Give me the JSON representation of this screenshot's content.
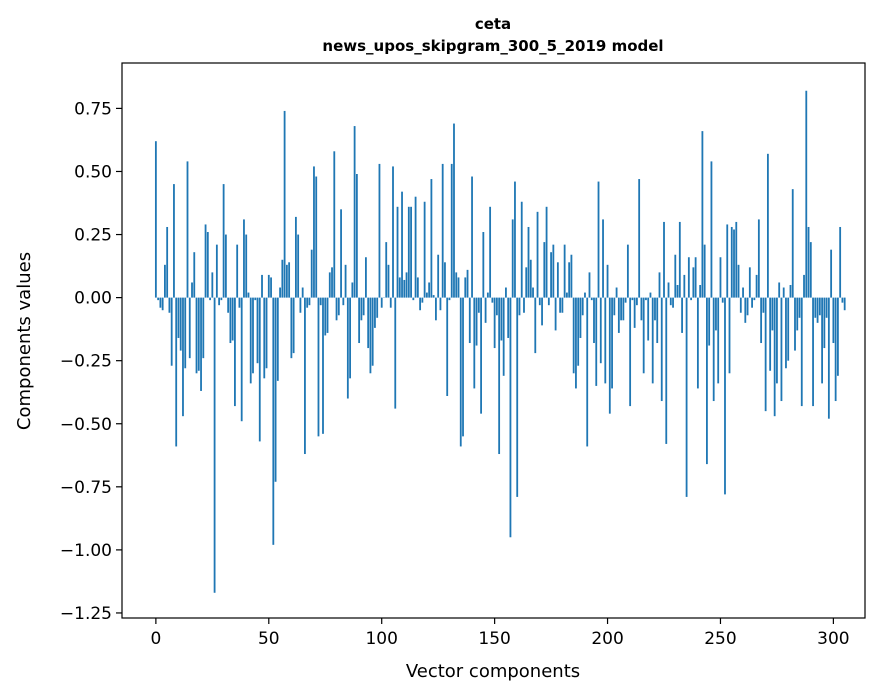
{
  "chart_data": {
    "type": "bar",
    "title_line1": "ceta",
    "title_line2": "news_upos_skipgram_300_5_2019 model",
    "xlabel": "Vector components",
    "ylabel": "Components values",
    "xlim": [
      -15,
      314
    ],
    "ylim": [
      -1.27,
      0.93
    ],
    "xticks": [
      0,
      50,
      100,
      150,
      200,
      250,
      300
    ],
    "yticks": [
      -1.25,
      -1.0,
      -0.75,
      -0.5,
      -0.25,
      0.0,
      0.25,
      0.5,
      0.75
    ],
    "ytick_labels": [
      "−1.25",
      "−1.00",
      "−0.75",
      "−0.50",
      "−0.25",
      "0.00",
      "0.25",
      "0.50",
      "0.75"
    ],
    "xtick_labels": [
      "0",
      "50",
      "100",
      "150",
      "200",
      "250",
      "300"
    ],
    "bar_color": "#1f77b4",
    "values": [
      0.62,
      -0.01,
      -0.04,
      -0.05,
      0.13,
      0.28,
      -0.06,
      -0.27,
      0.45,
      -0.59,
      -0.16,
      -0.21,
      -0.47,
      -0.28,
      0.54,
      -0.24,
      0.06,
      0.18,
      -0.3,
      -0.29,
      -0.37,
      -0.24,
      0.29,
      0.26,
      -0.01,
      0.1,
      -1.17,
      0.21,
      -0.03,
      -0.01,
      0.45,
      0.25,
      -0.06,
      -0.18,
      -0.17,
      -0.43,
      0.21,
      -0.04,
      -0.49,
      0.31,
      0.25,
      0.02,
      -0.34,
      -0.3,
      -0.01,
      -0.26,
      -0.57,
      0.09,
      -0.32,
      -0.28,
      0.09,
      0.08,
      -0.98,
      -0.73,
      -0.33,
      0.04,
      0.15,
      0.74,
      0.13,
      0.14,
      -0.24,
      -0.22,
      0.32,
      0.25,
      -0.06,
      0.04,
      -0.62,
      -0.04,
      -0.03,
      0.19,
      0.52,
      0.48,
      -0.55,
      -0.03,
      -0.54,
      -0.15,
      -0.14,
      0.1,
      0.12,
      0.58,
      -0.09,
      -0.07,
      0.35,
      -0.03,
      0.13,
      -0.4,
      -0.32,
      0.06,
      0.68,
      0.49,
      -0.18,
      -0.09,
      -0.07,
      0.16,
      -0.2,
      -0.3,
      -0.27,
      -0.12,
      -0.08,
      0.53,
      -0.04,
      0.0,
      0.22,
      0.13,
      -0.04,
      0.52,
      -0.44,
      0.36,
      0.08,
      0.42,
      0.07,
      0.1,
      0.36,
      0.36,
      -0.01,
      0.4,
      0.08,
      -0.05,
      -0.02,
      0.38,
      0.02,
      0.06,
      0.47,
      0.01,
      -0.09,
      0.17,
      -0.05,
      0.53,
      0.14,
      -0.39,
      -0.01,
      0.53,
      0.69,
      0.1,
      0.08,
      -0.59,
      -0.55,
      0.08,
      0.11,
      -0.18,
      0.48,
      -0.36,
      -0.19,
      -0.06,
      -0.46,
      0.26,
      -0.1,
      0.02,
      0.36,
      -0.02,
      -0.2,
      -0.07,
      -0.62,
      -0.17,
      -0.31,
      0.04,
      -0.16,
      -0.95,
      0.31,
      0.46,
      -0.79,
      -0.07,
      0.38,
      -0.06,
      0.12,
      0.28,
      0.15,
      0.04,
      -0.22,
      0.34,
      -0.03,
      -0.11,
      0.22,
      0.36,
      -0.03,
      0.18,
      0.21,
      -0.13,
      0.14,
      -0.06,
      -0.06,
      0.21,
      0.02,
      0.14,
      0.17,
      -0.3,
      -0.36,
      -0.27,
      -0.16,
      -0.07,
      0.02,
      -0.59,
      0.1,
      -0.01,
      -0.18,
      -0.35,
      0.46,
      -0.26,
      0.31,
      -0.34,
      0.13,
      -0.46,
      -0.36,
      -0.07,
      0.04,
      -0.14,
      -0.09,
      -0.09,
      -0.02,
      0.21,
      -0.43,
      -0.01,
      -0.12,
      -0.03,
      0.47,
      -0.09,
      -0.3,
      -0.01,
      -0.17,
      0.02,
      -0.34,
      -0.09,
      -0.18,
      0.1,
      -0.41,
      0.3,
      -0.58,
      0.06,
      -0.03,
      -0.04,
      0.17,
      0.05,
      0.3,
      -0.14,
      0.09,
      -0.79,
      0.16,
      -0.01,
      0.12,
      0.16,
      -0.36,
      0.05,
      0.66,
      0.21,
      -0.66,
      -0.19,
      0.54,
      -0.41,
      -0.13,
      -0.34,
      0.16,
      -0.02,
      -0.78,
      0.29,
      -0.3,
      0.28,
      0.27,
      0.3,
      0.13,
      -0.06,
      0.04,
      -0.1,
      -0.07,
      0.12,
      -0.04,
      -0.01,
      0.09,
      0.31,
      -0.18,
      -0.06,
      -0.45,
      0.57,
      -0.29,
      -0.13,
      -0.47,
      -0.34,
      0.06,
      -0.41,
      0.04,
      -0.28,
      -0.25,
      0.05,
      0.43,
      -0.21,
      -0.13,
      -0.08,
      -0.43,
      0.09,
      0.82,
      0.28,
      0.22,
      -0.43,
      -0.08,
      -0.1,
      -0.07,
      -0.34,
      -0.2,
      -0.08,
      -0.48,
      0.19,
      -0.18,
      -0.41,
      -0.31,
      0.28,
      -0.02,
      -0.05
    ]
  }
}
